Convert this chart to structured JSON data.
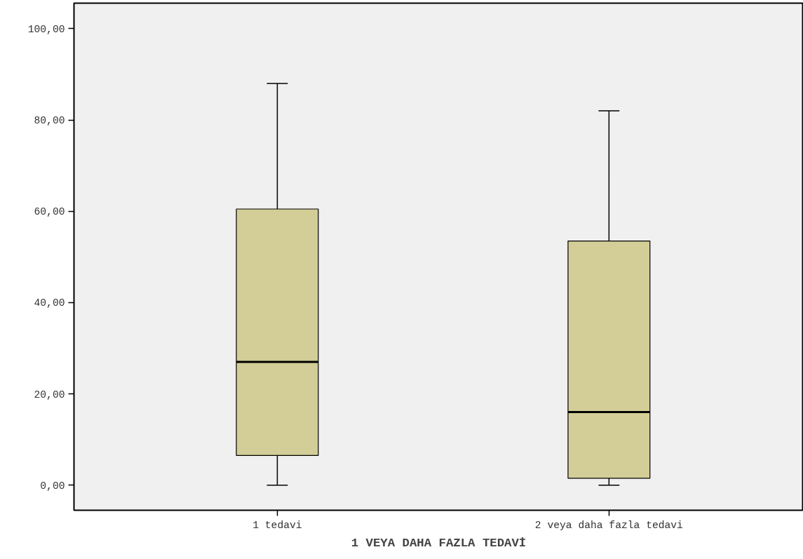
{
  "chart_data": {
    "type": "box",
    "xlabel": "1 VEYA DAHA FAZLA TEDAVİ",
    "categories": [
      "1 tedavi",
      "2 veya daha fazla tedavi"
    ],
    "series": [
      {
        "color": "#d3ce97",
        "boxes": [
          {
            "low": 0,
            "q1": 6.5,
            "median": 27,
            "q3": 60.5,
            "high": 88
          },
          {
            "low": 0,
            "q1": 1.5,
            "median": 16,
            "q3": 53.5,
            "high": 82
          }
        ]
      }
    ],
    "ylim": [
      -5.5,
      105.6
    ],
    "yticks": [
      {
        "value": 0,
        "label": "0,00"
      },
      {
        "value": 20,
        "label": "20,00"
      },
      {
        "value": 40,
        "label": "40,00"
      },
      {
        "value": 60,
        "label": "60,00"
      },
      {
        "value": 80,
        "label": "80,00"
      },
      {
        "value": 100,
        "label": "100,00"
      }
    ],
    "grid": false
  }
}
